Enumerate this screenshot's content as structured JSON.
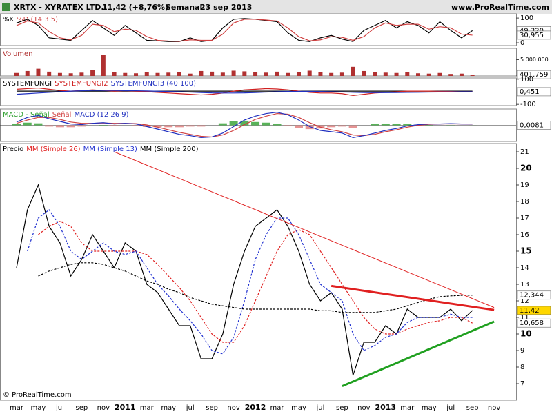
{
  "header": {
    "symbol": "XRTX - XYRATEX LTD.",
    "quote": "11,42 (+8,76%)",
    "period": "Semanal",
    "date": "23 sep 2013",
    "site": "www.ProRealTime.com"
  },
  "footer": "© ProRealTime.com",
  "chart_data": [
    {
      "type": "line",
      "ylim": [
        -11,
        117
      ],
      "yticks": [
        100,
        0
      ],
      "series": [
        {
          "name": "%K",
          "color": "#000000",
          "type": "line",
          "last_label": "49,320",
          "values": [
            80,
            95,
            70,
            20,
            15,
            10,
            50,
            90,
            60,
            30,
            70,
            40,
            10,
            8,
            5,
            5,
            20,
            5,
            10,
            60,
            95,
            98,
            95,
            90,
            85,
            40,
            10,
            5,
            20,
            30,
            15,
            5,
            50,
            70,
            90,
            60,
            85,
            70,
            40,
            85,
            50,
            20,
            49.32,
            null,
            null
          ]
        },
        {
          "name": "%D (14 3 5)",
          "color": "#d04040",
          "type": "line",
          "last_label": "30,955",
          "values": [
            70,
            88,
            80,
            45,
            20,
            12,
            30,
            75,
            70,
            45,
            55,
            50,
            25,
            10,
            7,
            6,
            12,
            10,
            10,
            35,
            80,
            95,
            95,
            92,
            88,
            60,
            25,
            8,
            12,
            25,
            22,
            10,
            25,
            60,
            80,
            70,
            75,
            75,
            55,
            65,
            60,
            35,
            30.955,
            null,
            null
          ]
        }
      ]
    },
    {
      "type": "bar",
      "ylim": [
        0,
        8500000
      ],
      "yticks": [
        {
          "value": 5000000,
          "label": "5.000.000"
        },
        0
      ],
      "series": [
        {
          "name": "Volumen",
          "color": "#b03030",
          "type": "bar",
          "last_label": "401.759",
          "values": [
            900000,
            1500000,
            2200000,
            1300000,
            900000,
            800000,
            1000000,
            1800000,
            6500000,
            1200000,
            900000,
            800000,
            1100000,
            900000,
            1000000,
            1200000,
            700000,
            1500000,
            1300000,
            1000000,
            1600000,
            1400000,
            1200000,
            1000000,
            1300000,
            900000,
            1100000,
            1600000,
            1200000,
            900000,
            1000000,
            2800000,
            1500000,
            1200000,
            1000000,
            900000,
            1100000,
            800000,
            700000,
            900000,
            600000,
            700000,
            401759,
            null,
            null
          ]
        }
      ]
    },
    {
      "type": "line",
      "ylim": [
        -110,
        110
      ],
      "yticks": [
        100,
        -100
      ],
      "series": [
        {
          "name": "SYSTEMFUNGI",
          "color": "#000000",
          "type": "line",
          "values": [
            5,
            5,
            5,
            5,
            5,
            5,
            5,
            5,
            5,
            5,
            5,
            5,
            5,
            5,
            5,
            5,
            5,
            5,
            5,
            5,
            5,
            5,
            5,
            5,
            5,
            5,
            5,
            5,
            5,
            5,
            5,
            5,
            5,
            5,
            5,
            5,
            5,
            5,
            5,
            5,
            5,
            5,
            5,
            null,
            null
          ]
        },
        {
          "name": "SYSTEMFUNGI2",
          "color": "#d02020",
          "type": "line",
          "last_label": "0,451",
          "values": [
            20,
            25,
            30,
            20,
            10,
            5,
            10,
            15,
            10,
            5,
            8,
            5,
            0,
            -5,
            -10,
            -15,
            -20,
            -25,
            -20,
            -10,
            5,
            15,
            20,
            25,
            22,
            15,
            5,
            -5,
            -10,
            -10,
            -15,
            -30,
            -20,
            -10,
            -5,
            0,
            5,
            5,
            5,
            3,
            2,
            0,
            0.451,
            null,
            null
          ]
        },
        {
          "name": "SYSTEMFUNGI3 (40 100)",
          "color": "#2030c0",
          "type": "line",
          "values": [
            -20,
            -15,
            -10,
            -5,
            0,
            5,
            8,
            10,
            10,
            10,
            9,
            8,
            6,
            4,
            2,
            0,
            -3,
            -6,
            -9,
            -10,
            -10,
            -9,
            -6,
            -3,
            0,
            2,
            3,
            3,
            2,
            0,
            -2,
            -4,
            -6,
            -7,
            -7,
            -6,
            -5,
            -4,
            -3,
            -2,
            -1,
            0,
            0.2,
            null,
            null
          ]
        }
      ]
    },
    {
      "type": "combo",
      "ylim": [
        -2.5,
        2.5
      ],
      "yticks": [],
      "series": [
        {
          "name": "MACD - Señal",
          "color": "#30a030",
          "negative_color": "#e07878",
          "type": "hist",
          "last_label": "0,0081",
          "values": [
            0.2,
            0.4,
            0.3,
            -0.2,
            -0.3,
            -0.3,
            -0.2,
            0,
            0.05,
            -0.1,
            0,
            -0.05,
            -0.25,
            -0.3,
            -0.3,
            -0.3,
            -0.2,
            -0.2,
            0,
            0.3,
            0.6,
            0.7,
            0.5,
            0.4,
            0.2,
            -0.1,
            -0.4,
            -0.6,
            -0.5,
            -0.3,
            -0.2,
            -0.4,
            0,
            0.2,
            0.2,
            0.2,
            0.2,
            0.1,
            0.05,
            0,
            0.03,
            0,
            0.0081,
            null,
            null
          ]
        },
        {
          "name": "Señal",
          "color": "#d04040",
          "type": "line",
          "values": [
            0.3,
            0.8,
            1.2,
            1.2,
            0.9,
            0.5,
            0.3,
            0.3,
            0.35,
            0.3,
            0.3,
            0.25,
            0.05,
            -0.3,
            -0.7,
            -1.1,
            -1.4,
            -1.7,
            -1.8,
            -1.5,
            -0.8,
            0.1,
            0.9,
            1.4,
            1.8,
            1.7,
            1.2,
            0.4,
            -0.3,
            -0.7,
            -1.0,
            -1.5,
            -1.6,
            -1.4,
            -1.0,
            -0.7,
            -0.3,
            0.0,
            0.15,
            0.2,
            0.22,
            0.2,
            0.19,
            null,
            null
          ]
        },
        {
          "name": "MACD (12 26 9)",
          "color": "#2030c0",
          "type": "line",
          "values": [
            0.5,
            1.2,
            1.5,
            1.0,
            0.6,
            0.2,
            0.1,
            0.3,
            0.4,
            0.2,
            0.3,
            0.2,
            -0.2,
            -0.6,
            -1.0,
            -1.4,
            -1.6,
            -1.9,
            -1.8,
            -1.2,
            -0.2,
            0.8,
            1.4,
            1.8,
            2.0,
            1.6,
            0.8,
            -0.2,
            -0.8,
            -1.0,
            -1.2,
            -1.9,
            -1.6,
            -1.2,
            -0.8,
            -0.5,
            -0.1,
            0.1,
            0.2,
            0.2,
            0.25,
            0.2,
            0.2,
            null,
            null
          ]
        }
      ]
    },
    {
      "type": "line",
      "ylim": [
        6,
        21.5
      ],
      "yticks": [
        7,
        8,
        9,
        10,
        11,
        12,
        13,
        14,
        15,
        16,
        17,
        18,
        19,
        20,
        21
      ],
      "categories": [
        "mar",
        null,
        "may",
        null,
        "jul",
        null,
        "sep",
        null,
        "nov",
        null,
        "2011",
        null,
        "mar",
        null,
        "may",
        null,
        "jul",
        null,
        "sep",
        null,
        "nov",
        null,
        "2012",
        null,
        "mar",
        null,
        "may",
        null,
        "jul",
        null,
        "sep",
        null,
        "nov",
        null,
        "2013",
        null,
        "mar",
        null,
        "may",
        null,
        "jul",
        null,
        "sep",
        null,
        "nov"
      ],
      "series": [
        {
          "name": "Precio",
          "color": "#000000",
          "type": "line",
          "last_label": "11,42",
          "values": [
            14,
            17.5,
            19,
            16.5,
            15.5,
            13.5,
            14.5,
            16,
            15,
            14,
            15.5,
            15,
            13,
            12.5,
            11.5,
            10.5,
            10.5,
            8.5,
            8.5,
            10,
            13,
            15,
            16.5,
            17,
            17.5,
            16.5,
            15,
            13,
            12,
            12.5,
            11.5,
            7.5,
            9.5,
            9.5,
            10.5,
            10,
            11.5,
            11,
            11,
            11,
            11.5,
            10.8,
            11.42,
            null,
            null
          ]
        },
        {
          "name": "MM (Simple 26)",
          "color": "#e02020",
          "type": "dashed",
          "last_label": "10,658",
          "values": [
            null,
            null,
            16,
            16.5,
            16.8,
            16.5,
            15.5,
            15,
            15,
            15,
            15,
            15,
            14.8,
            14.2,
            13.5,
            12.8,
            12,
            11,
            10,
            9.5,
            9.5,
            10.5,
            12,
            13.5,
            15,
            16,
            16.3,
            16,
            15,
            14,
            13,
            12,
            11,
            10.3,
            10,
            10,
            10.3,
            10.5,
            10.7,
            10.8,
            11,
            11,
            10.658,
            null,
            null
          ]
        },
        {
          "name": "MM (Simple 13)",
          "color": "#2030d0",
          "type": "dashed",
          "values": [
            null,
            15,
            17,
            17.5,
            16.5,
            15,
            14.5,
            15,
            15.5,
            15,
            14.8,
            15,
            14,
            13,
            12.3,
            11.5,
            10.8,
            10,
            9,
            8.8,
            9.8,
            12,
            14.5,
            16,
            17,
            17,
            16,
            14.5,
            13,
            12.5,
            12,
            10,
            9,
            9.3,
            9.8,
            10,
            10.7,
            11,
            11,
            11,
            11.2,
            11,
            11,
            null,
            null
          ]
        },
        {
          "name": "MM (Simple 200)",
          "color": "#000000",
          "type": "dashed",
          "last_label": "12,344",
          "values": [
            null,
            null,
            13.5,
            13.8,
            14,
            14.2,
            14.3,
            14.3,
            14.2,
            14,
            13.8,
            13.5,
            13.2,
            13,
            12.7,
            12.5,
            12.2,
            12,
            11.8,
            11.7,
            11.6,
            11.5,
            11.5,
            11.5,
            11.5,
            11.5,
            11.5,
            11.5,
            11.4,
            11.4,
            11.3,
            11.3,
            11.3,
            11.3,
            11.4,
            11.5,
            11.7,
            11.9,
            12.1,
            12.25,
            12.3,
            12.33,
            12.344,
            null,
            null
          ]
        }
      ],
      "trendlines": [
        {
          "color": "#e02020",
          "width": 1,
          "x": [
            9,
            44
          ],
          "values": [
            21,
            11.6
          ]
        },
        {
          "color": "#e02020",
          "width": 3,
          "x": [
            29,
            44
          ],
          "values": [
            12.9,
            11.45
          ]
        },
        {
          "color": "#20a020",
          "width": 3,
          "x": [
            30,
            44
          ],
          "values": [
            6.85,
            10.75
          ]
        }
      ]
    }
  ]
}
